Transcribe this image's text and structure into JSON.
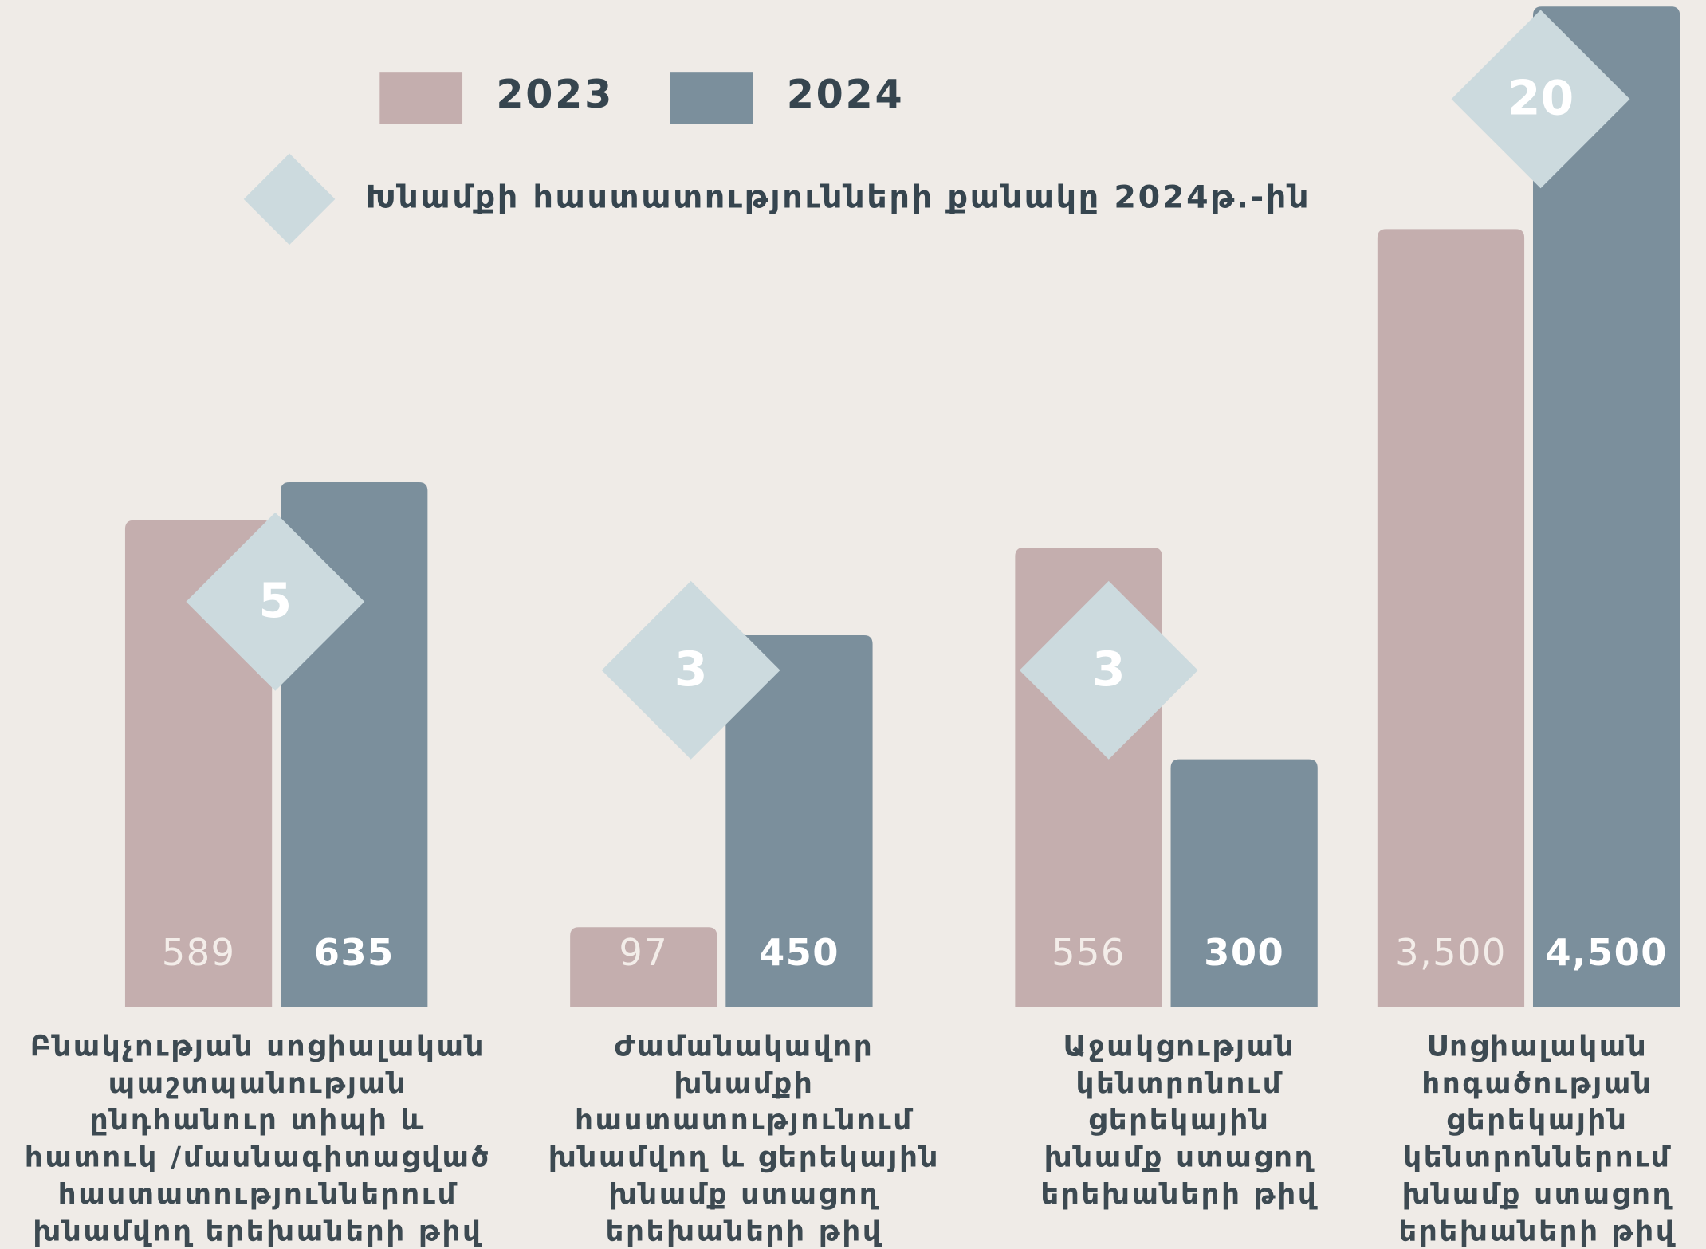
{
  "chart_data": [
    {
      "type": "bar",
      "categories": [
        [
          "Բնակչության սոցիալական",
          "պաշտպանության",
          "ընդհանուր տիպի և",
          "հատուկ /մասնագիտացված",
          "հաստատություններում",
          "խնամվող երեխաների թիվ"
        ],
        [
          "Ժամանակավոր",
          "խնամքի",
          "հաստատությունում",
          "խնամվող և ցերեկային",
          "խնամք ստացող",
          "երեխաների թիվ"
        ],
        [
          "Աջակցության",
          "կենտրոնում",
          "ցերեկային",
          "խնամք ստացող",
          "երեխաների թիվ"
        ]
      ],
      "series": [
        {
          "name": "2023",
          "color": "#c4aeae",
          "values": [
            589,
            97,
            556
          ]
        },
        {
          "name": "2024",
          "color": "#7b8f9c",
          "values": [
            635,
            450,
            300
          ]
        },
        {
          "name": "Խնամքի հաստատությունների քանակը 2024թ.-ին",
          "type": "diamond",
          "color": "#ccdade",
          "values": [
            5,
            3,
            3
          ]
        }
      ],
      "ylim": [
        0,
        1210
      ]
    },
    {
      "type": "bar",
      "categories": [
        [
          "Սոցիալական",
          "հոգածության",
          "ցերեկային",
          "կենտրոններում",
          "խնամք ստացող",
          "երեխաների թիվ"
        ]
      ],
      "series": [
        {
          "color": "#c4aeae",
          "values": [
            3500
          ],
          "value_labels": [
            "3,500"
          ]
        },
        {
          "color": "#7b8f9c",
          "values": [
            4500
          ],
          "value_labels": [
            "4,500"
          ]
        },
        {
          "type": "diamond",
          "color": "#ccdade",
          "values": [
            20
          ]
        }
      ],
      "ylim": [
        0,
        4500
      ]
    }
  ]
}
